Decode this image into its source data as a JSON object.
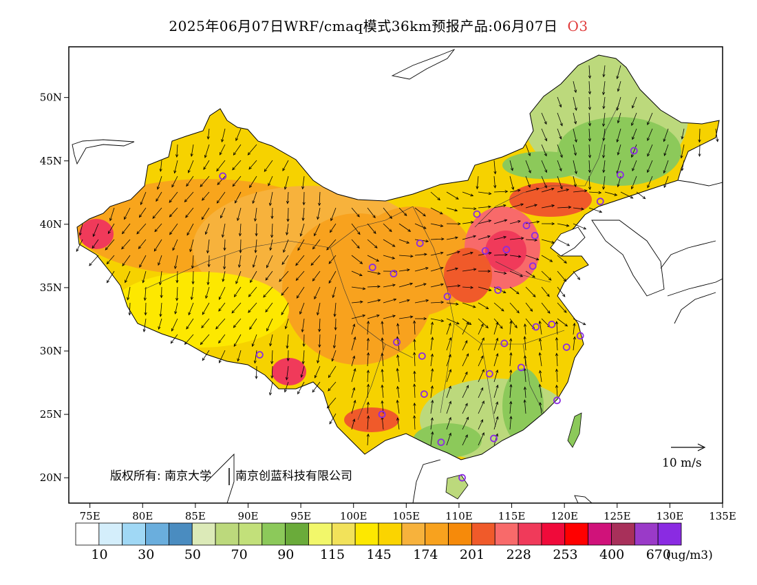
{
  "title": {
    "main": "2025年06月07日WRF/cmaq模式36km预报产品:06月07日",
    "pollutant": "O3",
    "pollutant_color": "#e03a3a"
  },
  "map": {
    "lon_range": [
      73,
      135
    ],
    "lat_range": [
      18,
      54
    ],
    "lon_ticks": [
      "75E",
      "80E",
      "85E",
      "90E",
      "95E",
      "100E",
      "105E",
      "110E",
      "115E",
      "120E",
      "125E",
      "130E",
      "135E"
    ],
    "lat_ticks": [
      "20N",
      "25N",
      "30N",
      "35N",
      "40N",
      "45N",
      "50N"
    ],
    "wind_scale_label": "10 m/s",
    "copyright_label": "版权所有: 南京大学",
    "copyright_company": "南京创蓝科技有限公司",
    "station_marker_color": "#8a2be2",
    "stations": [
      {
        "lon": 87.6,
        "lat": 43.8
      },
      {
        "lon": 101.8,
        "lat": 36.6
      },
      {
        "lon": 103.8,
        "lat": 36.1
      },
      {
        "lon": 106.3,
        "lat": 38.5
      },
      {
        "lon": 111.7,
        "lat": 40.8
      },
      {
        "lon": 116.4,
        "lat": 39.9
      },
      {
        "lon": 117.2,
        "lat": 39.1
      },
      {
        "lon": 114.5,
        "lat": 38.0
      },
      {
        "lon": 112.5,
        "lat": 37.9
      },
      {
        "lon": 117.0,
        "lat": 36.7
      },
      {
        "lon": 113.7,
        "lat": 34.8
      },
      {
        "lon": 108.9,
        "lat": 34.3
      },
      {
        "lon": 117.3,
        "lat": 31.9
      },
      {
        "lon": 118.8,
        "lat": 32.1
      },
      {
        "lon": 120.2,
        "lat": 30.3
      },
      {
        "lon": 121.5,
        "lat": 31.2
      },
      {
        "lon": 114.3,
        "lat": 30.6
      },
      {
        "lon": 112.9,
        "lat": 28.2
      },
      {
        "lon": 115.9,
        "lat": 28.7
      },
      {
        "lon": 119.3,
        "lat": 26.1
      },
      {
        "lon": 113.3,
        "lat": 23.1
      },
      {
        "lon": 108.3,
        "lat": 22.8
      },
      {
        "lon": 110.3,
        "lat": 20.0
      },
      {
        "lon": 102.7,
        "lat": 25.0
      },
      {
        "lon": 106.7,
        "lat": 26.6
      },
      {
        "lon": 106.5,
        "lat": 29.6
      },
      {
        "lon": 104.1,
        "lat": 30.7
      },
      {
        "lon": 91.1,
        "lat": 29.7
      },
      {
        "lon": 123.4,
        "lat": 41.8
      },
      {
        "lon": 125.3,
        "lat": 43.9
      },
      {
        "lon": 126.6,
        "lat": 45.8
      }
    ]
  },
  "legend": {
    "unit": "(ug/m3)",
    "labels": [
      "10",
      "30",
      "50",
      "70",
      "90",
      "115",
      "145",
      "174",
      "201",
      "228",
      "253",
      "400",
      "670"
    ],
    "colors": [
      "#ffffff",
      "#d4eefb",
      "#a0d8f5",
      "#6aaedd",
      "#4a8cc0",
      "#dceab8",
      "#bcd97c",
      "#c2e07a",
      "#8cc95a",
      "#6aab3a",
      "#f2f76a",
      "#f2e25a",
      "#fde800",
      "#fbd400",
      "#f7b23c",
      "#f8a21e",
      "#f68a0a",
      "#f05a2a",
      "#f86a6a",
      "#f03a5a",
      "#f00a3a",
      "#ff0000",
      "#d0127a",
      "#a8305a",
      "#9a3ac8",
      "#8a2be2"
    ]
  }
}
